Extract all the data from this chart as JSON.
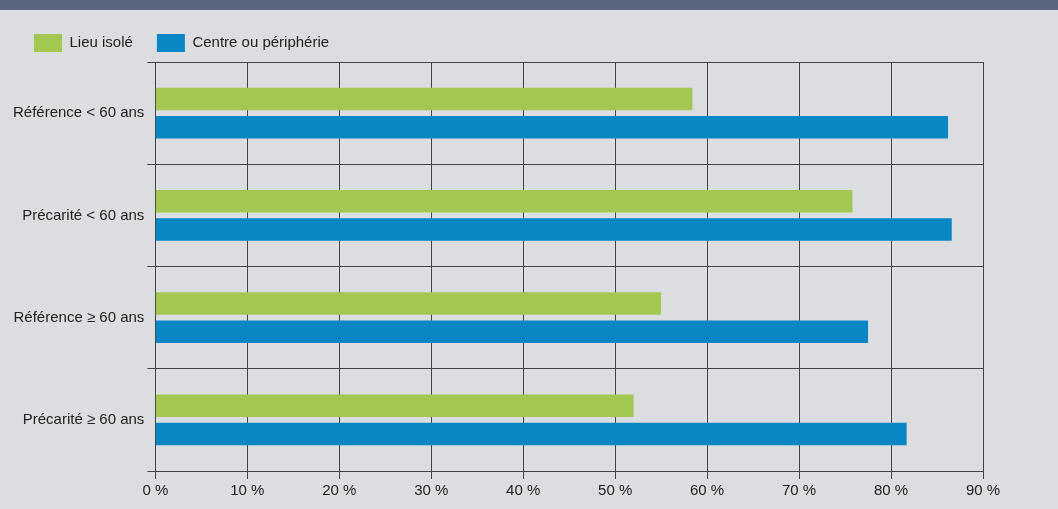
{
  "chart_data": {
    "type": "bar",
    "orientation": "horizontal",
    "categories": [
      "Référence < 60 ans",
      "Précarité < 60 ans",
      "Référence ≥ 60 ans",
      "Précarité ≥ 60 ans"
    ],
    "series": [
      {
        "name": "Lieu isolé",
        "color": "#a2c852",
        "values": [
          58.4,
          75.8,
          55,
          52
        ]
      },
      {
        "name": "Centre ou périphérie",
        "color": "#0a86c4",
        "values": [
          86.2,
          86.6,
          77.5,
          81.7
        ]
      }
    ],
    "xlim": [
      0,
      90
    ],
    "xticks": [
      {
        "value": 0,
        "label": "0 %"
      },
      {
        "value": 10,
        "label": "10 %"
      },
      {
        "value": 20,
        "label": "20 %"
      },
      {
        "value": 30,
        "label": "30 %"
      },
      {
        "value": 40,
        "label": "40 %"
      },
      {
        "value": 50,
        "label": "50 %"
      },
      {
        "value": 60,
        "label": "60 %"
      },
      {
        "value": 70,
        "label": "70 %"
      },
      {
        "value": 80,
        "label": "80 %"
      },
      {
        "value": 90,
        "label": "90 %"
      }
    ],
    "grid": true,
    "legend": "top left"
  }
}
